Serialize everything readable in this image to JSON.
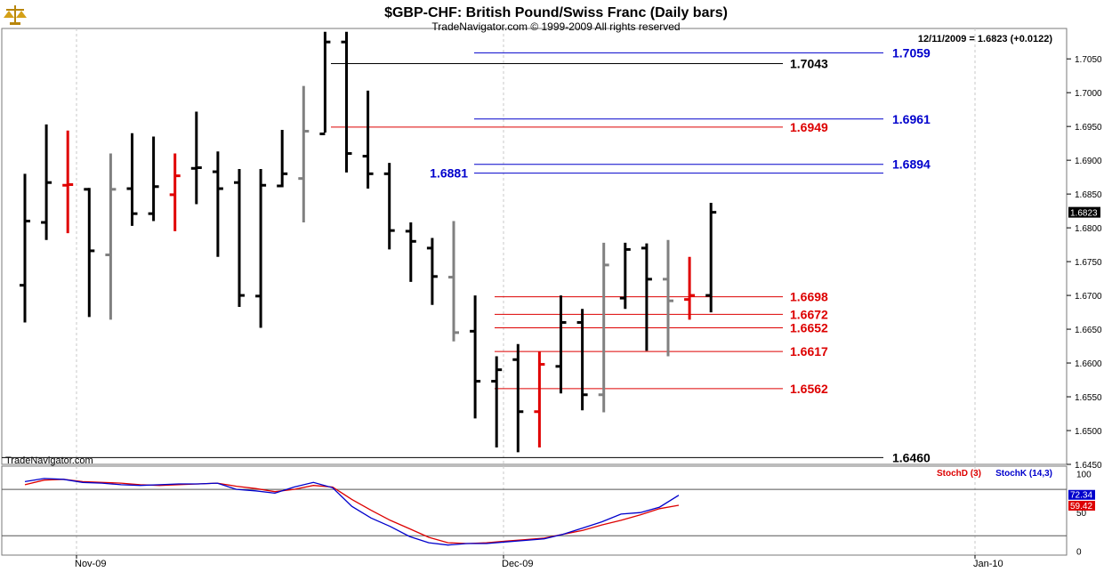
{
  "header": {
    "title": "$GBP-CHF:  British Pound/Swiss Franc  (Daily bars)",
    "copyright": "TradeNavigator.com © 1999-2009 All rights reserved",
    "last_quote": "12/11/2009 = 1.6823 (+0.0122)",
    "watermark": "TradeNavigator.com"
  },
  "colors": {
    "up_bar": "#000000",
    "inside_bar": "#808080",
    "highlight_bar": "#e00000",
    "blue_level": "#0000cc",
    "red_level": "#dd0000",
    "black_level": "#000000",
    "stoch_d": "#dd0000",
    "stoch_k": "#0000cc"
  },
  "chart_data": [
    {
      "type": "ohlc",
      "title": "$GBP-CHF:  British Pound/Swiss Franc  (Daily bars)",
      "ylim": [
        1.645,
        1.7095
      ],
      "y_ticks": [
        "1.7050",
        "1.7000",
        "1.6950",
        "1.6900",
        "1.6850",
        "1.6800",
        "1.6750",
        "1.6700",
        "1.6650",
        "1.6600",
        "1.6550",
        "1.6500",
        "1.6450"
      ],
      "x_ticks": [
        "Nov-09",
        "Dec-09",
        "Jan-10"
      ],
      "last_price_label": "1.6823",
      "bars": [
        {
          "h": 1.688,
          "l": 1.666,
          "o": 1.6715,
          "c": 1.681,
          "kind": "normal"
        },
        {
          "h": 1.6953,
          "l": 1.6782,
          "o": 1.6808,
          "c": 1.6867,
          "kind": "normal"
        },
        {
          "h": 1.6944,
          "l": 1.6792,
          "o": 1.6863,
          "c": 1.6864,
          "kind": "red"
        },
        {
          "h": 1.6859,
          "l": 1.6668,
          "o": 1.6857,
          "c": 1.6766,
          "kind": "normal"
        },
        {
          "h": 1.691,
          "l": 1.6664,
          "o": 1.676,
          "c": 1.6857,
          "kind": "gray"
        },
        {
          "h": 1.694,
          "l": 1.6803,
          "o": 1.6858,
          "c": 1.6821,
          "kind": "normal"
        },
        {
          "h": 1.6935,
          "l": 1.681,
          "o": 1.6821,
          "c": 1.6861,
          "kind": "normal"
        },
        {
          "h": 1.691,
          "l": 1.6795,
          "o": 1.6849,
          "c": 1.6877,
          "kind": "red"
        },
        {
          "h": 1.6972,
          "l": 1.6835,
          "o": 1.6888,
          "c": 1.6889,
          "kind": "normal"
        },
        {
          "h": 1.6913,
          "l": 1.6757,
          "o": 1.6883,
          "c": 1.6858,
          "kind": "normal"
        },
        {
          "h": 1.6887,
          "l": 1.6683,
          "o": 1.6867,
          "c": 1.67,
          "kind": "normal"
        },
        {
          "h": 1.6887,
          "l": 1.6652,
          "o": 1.6699,
          "c": 1.6863,
          "kind": "normal"
        },
        {
          "h": 1.6945,
          "l": 1.686,
          "o": 1.6862,
          "c": 1.688,
          "kind": "normal"
        },
        {
          "h": 1.701,
          "l": 1.6808,
          "o": 1.6873,
          "c": 1.6943,
          "kind": "gray"
        },
        {
          "h": 1.709,
          "l": 1.6941,
          "o": 1.6939,
          "c": 1.7075,
          "kind": "normal"
        },
        {
          "h": 1.709,
          "l": 1.6882,
          "o": 1.7075,
          "c": 1.691,
          "kind": "normal"
        },
        {
          "h": 1.7003,
          "l": 1.6858,
          "o": 1.6906,
          "c": 1.688,
          "kind": "normal"
        },
        {
          "h": 1.6896,
          "l": 1.6768,
          "o": 1.688,
          "c": 1.6796,
          "kind": "normal"
        },
        {
          "h": 1.6808,
          "l": 1.672,
          "o": 1.6795,
          "c": 1.678,
          "kind": "normal"
        },
        {
          "h": 1.6785,
          "l": 1.6686,
          "o": 1.677,
          "c": 1.6728,
          "kind": "normal"
        },
        {
          "h": 1.681,
          "l": 1.6632,
          "o": 1.6727,
          "c": 1.6645,
          "kind": "gray"
        },
        {
          "h": 1.67,
          "l": 1.6518,
          "o": 1.6647,
          "c": 1.6573,
          "kind": "normal"
        },
        {
          "h": 1.661,
          "l": 1.6475,
          "o": 1.6573,
          "c": 1.659,
          "kind": "normal"
        },
        {
          "h": 1.6628,
          "l": 1.6468,
          "o": 1.6605,
          "c": 1.6528,
          "kind": "normal"
        },
        {
          "h": 1.6617,
          "l": 1.6475,
          "o": 1.6528,
          "c": 1.6598,
          "kind": "red"
        },
        {
          "h": 1.67,
          "l": 1.6555,
          "o": 1.6595,
          "c": 1.666,
          "kind": "normal"
        },
        {
          "h": 1.668,
          "l": 1.653,
          "o": 1.666,
          "c": 1.6553,
          "kind": "normal"
        },
        {
          "h": 1.6778,
          "l": 1.6527,
          "o": 1.6553,
          "c": 1.6745,
          "kind": "gray"
        },
        {
          "h": 1.6778,
          "l": 1.668,
          "o": 1.6696,
          "c": 1.6768,
          "kind": "normal"
        },
        {
          "h": 1.6777,
          "l": 1.6618,
          "o": 1.677,
          "c": 1.6724,
          "kind": "normal"
        },
        {
          "h": 1.6782,
          "l": 1.661,
          "o": 1.6724,
          "c": 1.6692,
          "kind": "gray"
        },
        {
          "h": 1.6757,
          "l": 1.6664,
          "o": 1.6694,
          "c": 1.67,
          "kind": "red"
        },
        {
          "h": 1.6837,
          "l": 1.6675,
          "o": 1.67,
          "c": 1.6823,
          "kind": "normal"
        }
      ],
      "levels": [
        {
          "value": 1.7059,
          "label": "1.7059",
          "color": "blue",
          "label_side": "right"
        },
        {
          "value": 1.7043,
          "label": "1.7043",
          "color": "black",
          "label_side": "right"
        },
        {
          "value": 1.6961,
          "label": "1.6961",
          "color": "blue",
          "label_side": "right"
        },
        {
          "value": 1.6949,
          "label": "1.6949",
          "color": "red",
          "label_side": "right"
        },
        {
          "value": 1.6894,
          "label": "1.6894",
          "color": "blue",
          "label_side": "right"
        },
        {
          "value": 1.6881,
          "label": "1.6881",
          "color": "blue",
          "label_side": "left"
        },
        {
          "value": 1.6698,
          "label": "1.6698",
          "color": "red",
          "label_side": "right"
        },
        {
          "value": 1.6672,
          "label": "1.6672",
          "color": "red",
          "label_side": "right"
        },
        {
          "value": 1.6652,
          "label": "1.6652",
          "color": "red",
          "label_side": "right"
        },
        {
          "value": 1.6617,
          "label": "1.6617",
          "color": "red",
          "label_side": "right"
        },
        {
          "value": 1.6562,
          "label": "1.6562",
          "color": "red",
          "label_side": "right"
        },
        {
          "value": 1.646,
          "label": "1.6460",
          "color": "black",
          "label_side": "right"
        }
      ]
    },
    {
      "type": "line",
      "ylim": [
        -5,
        110
      ],
      "y_ticks": [
        "100",
        "50",
        "0"
      ],
      "reference_lines": [
        80,
        20
      ],
      "series": [
        {
          "name": "StochD (3)",
          "last_label": "59.42",
          "values": [
            86,
            92,
            93,
            90,
            89,
            88,
            86,
            85,
            86,
            87,
            88,
            84,
            81,
            77,
            80,
            85,
            83,
            67,
            53,
            40,
            29,
            18,
            11,
            10,
            11,
            13,
            15,
            17,
            22,
            27,
            34,
            40,
            47,
            55,
            59.42
          ]
        },
        {
          "name": "StochK (14,3)",
          "last_label": "72.34",
          "values": [
            90,
            94,
            93,
            89,
            88,
            86,
            85,
            86,
            87,
            87,
            88,
            80,
            78,
            75,
            83,
            89,
            82,
            58,
            43,
            32,
            19,
            11,
            8,
            10,
            10,
            12,
            14,
            16,
            22,
            30,
            38,
            48,
            50,
            57,
            72.34
          ]
        }
      ]
    }
  ]
}
